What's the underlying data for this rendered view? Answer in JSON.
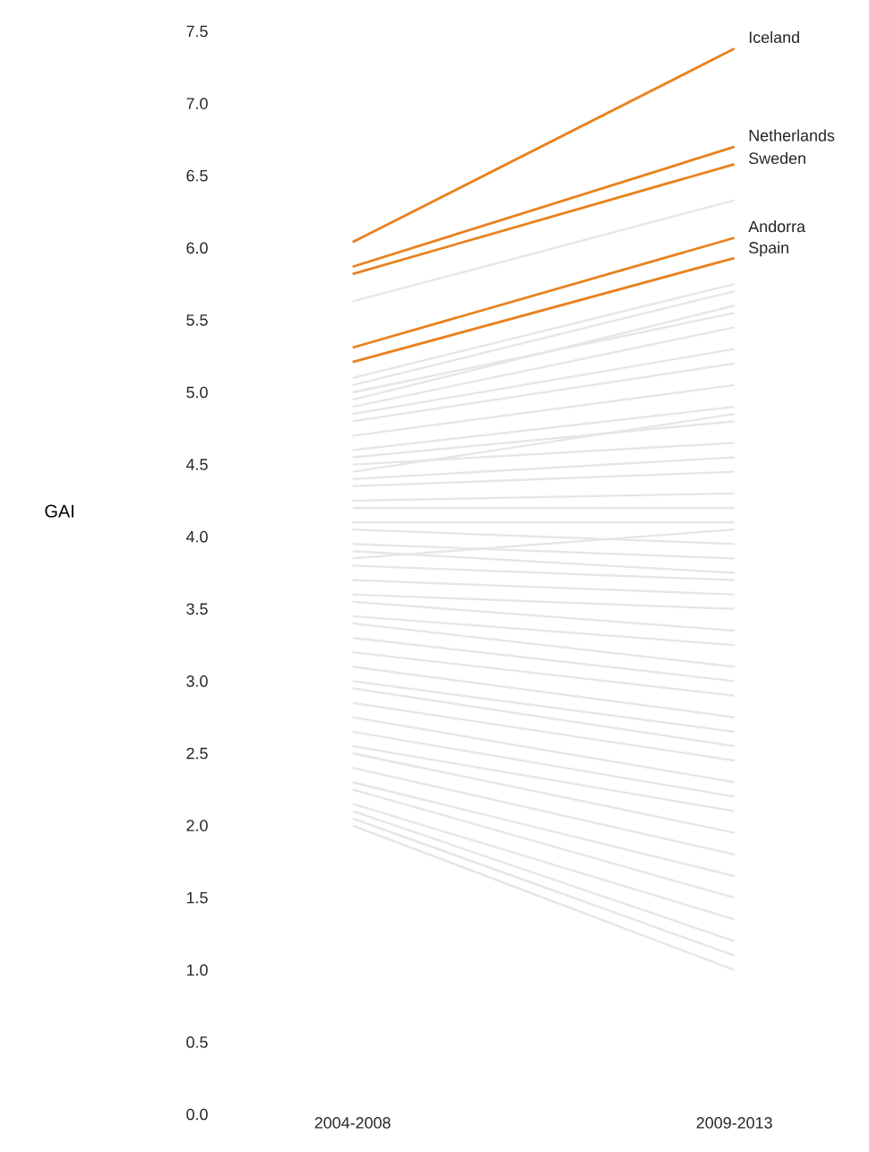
{
  "chart_data": {
    "type": "line",
    "ylabel": "GAI",
    "categories": [
      "2004-2008",
      "2009-2013"
    ],
    "ylim": [
      0,
      7.5
    ],
    "yticks": [
      {
        "value": 0,
        "label": "0.0"
      },
      {
        "value": 0.5,
        "label": "0.5"
      },
      {
        "value": 1,
        "label": "1.0"
      },
      {
        "value": 1.5,
        "label": "1.5"
      },
      {
        "value": 2,
        "label": "2.0"
      },
      {
        "value": 2.5,
        "label": "2.5"
      },
      {
        "value": 3,
        "label": "3.0"
      },
      {
        "value": 3.5,
        "label": "3.5"
      },
      {
        "value": 4,
        "label": "4.0"
      },
      {
        "value": 4.5,
        "label": "4.5"
      },
      {
        "value": 5,
        "label": "5.0"
      },
      {
        "value": 5.5,
        "label": "5.5"
      },
      {
        "value": 6,
        "label": "6.0"
      },
      {
        "value": 6.5,
        "label": "6.5"
      },
      {
        "value": 7,
        "label": "7.0"
      },
      {
        "value": 7.5,
        "label": "7.5"
      }
    ],
    "marker": "none",
    "line_style": "solid",
    "series": [
      {
        "color": "#e6e6e6",
        "values": [
          5.63,
          6.33
        ]
      },
      {
        "color": "#e6e6e6",
        "values": [
          5.1,
          5.75
        ]
      },
      {
        "color": "#e6e6e6",
        "values": [
          5.05,
          5.7
        ]
      },
      {
        "color": "#e6e6e6",
        "values": [
          5.0,
          5.55
        ]
      },
      {
        "color": "#e6e6e6",
        "values": [
          4.95,
          5.6
        ]
      },
      {
        "color": "#e6e6e6",
        "values": [
          4.9,
          5.45
        ]
      },
      {
        "color": "#e6e6e6",
        "values": [
          4.85,
          5.3
        ]
      },
      {
        "color": "#e6e6e6",
        "values": [
          4.8,
          5.2
        ]
      },
      {
        "color": "#e6e6e6",
        "values": [
          4.7,
          5.05
        ]
      },
      {
        "color": "#e6e6e6",
        "values": [
          4.6,
          4.9
        ]
      },
      {
        "color": "#e6e6e6",
        "values": [
          4.55,
          4.8
        ]
      },
      {
        "color": "#e6e6e6",
        "values": [
          4.5,
          4.65
        ]
      },
      {
        "color": "#e6e6e6",
        "values": [
          4.45,
          4.85
        ]
      },
      {
        "color": "#e6e6e6",
        "values": [
          4.4,
          4.55
        ]
      },
      {
        "color": "#e6e6e6",
        "values": [
          4.35,
          4.45
        ]
      },
      {
        "color": "#e6e6e6",
        "values": [
          4.25,
          4.3
        ]
      },
      {
        "color": "#e6e6e6",
        "values": [
          4.2,
          4.2
        ]
      },
      {
        "color": "#e6e6e6",
        "values": [
          4.1,
          4.1
        ]
      },
      {
        "color": "#e6e6e6",
        "values": [
          4.05,
          3.95
        ]
      },
      {
        "color": "#e6e6e6",
        "values": [
          3.95,
          3.85
        ]
      },
      {
        "color": "#e6e6e6",
        "values": [
          3.9,
          3.75
        ]
      },
      {
        "color": "#e6e6e6",
        "values": [
          3.85,
          4.05
        ]
      },
      {
        "color": "#e6e6e6",
        "values": [
          3.8,
          3.7
        ]
      },
      {
        "color": "#e6e6e6",
        "values": [
          3.7,
          3.6
        ]
      },
      {
        "color": "#e6e6e6",
        "values": [
          3.6,
          3.5
        ]
      },
      {
        "color": "#e6e6e6",
        "values": [
          3.55,
          3.35
        ]
      },
      {
        "color": "#e6e6e6",
        "values": [
          3.45,
          3.25
        ]
      },
      {
        "color": "#e6e6e6",
        "values": [
          3.4,
          3.1
        ]
      },
      {
        "color": "#e6e6e6",
        "values": [
          3.3,
          3.0
        ]
      },
      {
        "color": "#e6e6e6",
        "values": [
          3.2,
          2.9
        ]
      },
      {
        "color": "#e6e6e6",
        "values": [
          3.1,
          2.75
        ]
      },
      {
        "color": "#e6e6e6",
        "values": [
          3.0,
          2.65
        ]
      },
      {
        "color": "#e6e6e6",
        "values": [
          2.95,
          2.55
        ]
      },
      {
        "color": "#e6e6e6",
        "values": [
          2.85,
          2.45
        ]
      },
      {
        "color": "#e6e6e6",
        "values": [
          2.75,
          2.3
        ]
      },
      {
        "color": "#e6e6e6",
        "values": [
          2.65,
          2.2
        ]
      },
      {
        "color": "#e6e6e6",
        "values": [
          2.55,
          2.1
        ]
      },
      {
        "color": "#e6e6e6",
        "values": [
          2.5,
          1.95
        ]
      },
      {
        "color": "#e6e6e6",
        "values": [
          2.4,
          1.8
        ]
      },
      {
        "color": "#e6e6e6",
        "values": [
          2.3,
          1.65
        ]
      },
      {
        "color": "#e6e6e6",
        "values": [
          2.25,
          1.5
        ]
      },
      {
        "color": "#e6e6e6",
        "values": [
          2.15,
          1.35
        ]
      },
      {
        "color": "#e6e6e6",
        "values": [
          2.1,
          1.2
        ]
      },
      {
        "color": "#e6e6e6",
        "values": [
          2.05,
          1.1
        ]
      },
      {
        "color": "#e6e6e6",
        "values": [
          2.0,
          1.0
        ]
      },
      {
        "name": "Iceland",
        "color": "#e8821e",
        "values": [
          6.04,
          7.38
        ]
      },
      {
        "name": "Netherlands",
        "color": "#e8821e",
        "values": [
          5.87,
          6.7
        ]
      },
      {
        "name": "Sweden",
        "color": "#e8821e",
        "values": [
          5.82,
          6.58
        ]
      },
      {
        "name": "Andorra",
        "color": "#e8821e",
        "values": [
          5.31,
          6.07
        ]
      },
      {
        "name": "Spain",
        "color": "#e8821e",
        "values": [
          5.21,
          5.93
        ]
      }
    ]
  }
}
